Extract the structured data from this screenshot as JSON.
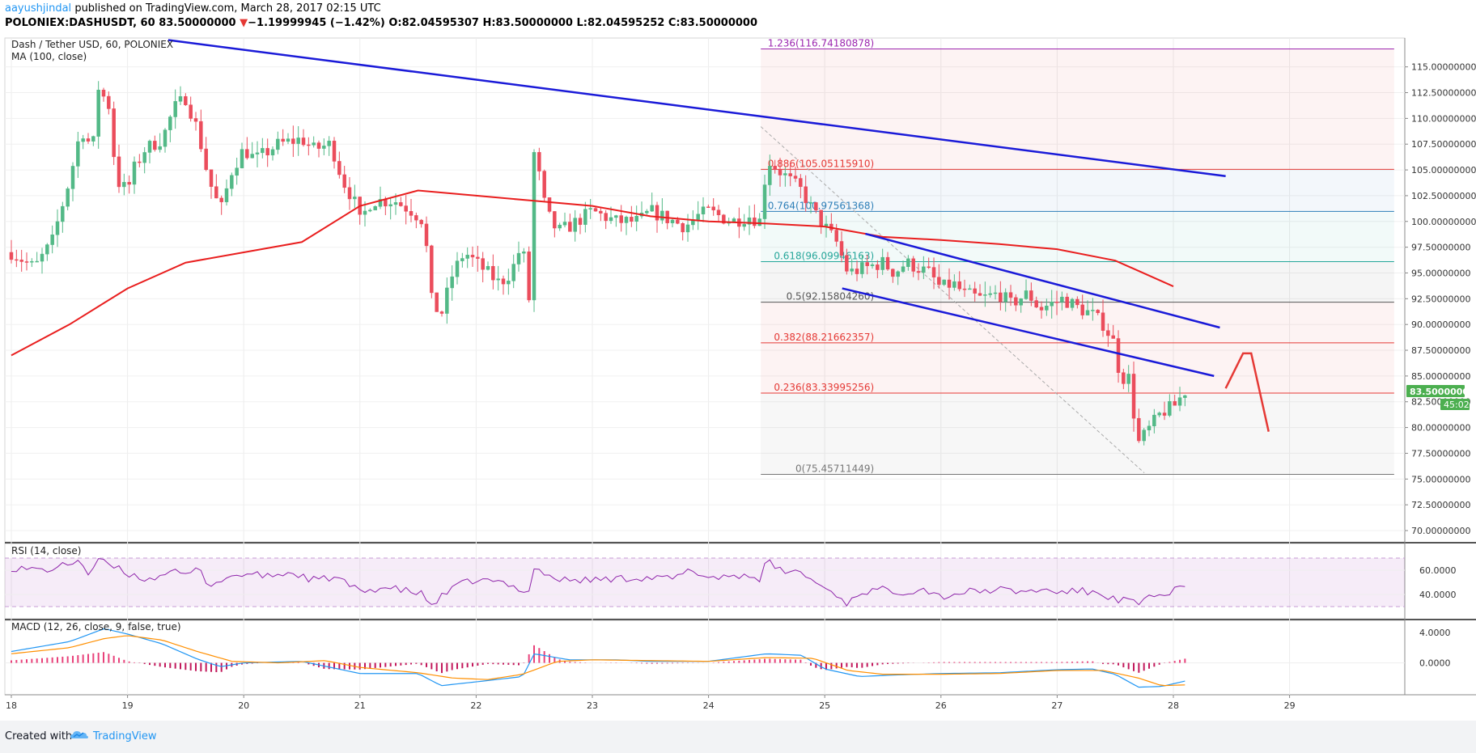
{
  "header": {
    "author": "aayushjindal",
    "published_text": "published on TradingView.com, March 28, 2017 02:15 UTC",
    "symbol": "POLONIEX:DASHUSDT, 60",
    "close": "83.50000000",
    "down_arrow": "▼",
    "change": "−1.19999945 (−1.42%)",
    "ohlc": "O:82.04595307 H:83.50000000 L:82.04595252 C:83.50000000"
  },
  "footer": {
    "created_with": "Created with",
    "brand": "TradingView",
    "logo_icon": "tradingview-cloud-icon"
  },
  "colors": {
    "up_candle": "#53b987",
    "down_candle": "#eb4d5c",
    "ma_line": "#e91e1e",
    "trend_line": "#1a1ad8",
    "fib_red": "#e53935",
    "fib_blue": "#2e7fb8",
    "fib_teal": "#26a69a",
    "fib_purple": "#9c27b0",
    "rsi_line": "#8e24aa",
    "macd_line": "#2196f3",
    "signal_line": "#ff8f00",
    "last_price_badge": "#4caf50"
  },
  "chart_data": [
    {
      "type": "candlestick",
      "title": "Dash / Tether USD, 60, POLONIEX",
      "indicator_label": "MA (100, close)",
      "x_ticks": [
        "18",
        "19",
        "20",
        "21",
        "22",
        "23",
        "24",
        "25",
        "26",
        "27",
        "28",
        "29"
      ],
      "x_range": [
        18,
        29.9
      ],
      "y_ticks": [
        "70.00000000",
        "72.50000000",
        "75.00000000",
        "77.50000000",
        "80.00000000",
        "82.50000000",
        "85.00000000",
        "87.50000000",
        "90.00000000",
        "92.50000000",
        "95.00000000",
        "97.50000000",
        "100.00000000",
        "102.50000000",
        "105.00000000",
        "107.50000000",
        "110.00000000",
        "112.50000000",
        "115.00000000"
      ],
      "ylim": [
        68.9,
        117.8
      ],
      "last_price": "83.50000000",
      "countdown": "45:02",
      "candle_anchors": [
        [
          18.0,
          97
        ],
        [
          18.2,
          95.5
        ],
        [
          18.35,
          98
        ],
        [
          18.5,
          104
        ],
        [
          18.6,
          109
        ],
        [
          18.7,
          107
        ],
        [
          18.75,
          113
        ],
        [
          18.85,
          111
        ],
        [
          18.9,
          104
        ],
        [
          19.0,
          103
        ],
        [
          19.05,
          105
        ],
        [
          19.15,
          107
        ],
        [
          19.3,
          108
        ],
        [
          19.4,
          111
        ],
        [
          19.5,
          112
        ],
        [
          19.6,
          109
        ],
        [
          19.7,
          104
        ],
        [
          19.8,
          101
        ],
        [
          19.9,
          105
        ],
        [
          20.0,
          107
        ],
        [
          20.1,
          106
        ],
        [
          20.3,
          107.5
        ],
        [
          20.5,
          108
        ],
        [
          20.6,
          107
        ],
        [
          20.75,
          107.5
        ],
        [
          20.85,
          104
        ],
        [
          20.95,
          102
        ],
        [
          21.0,
          100
        ],
        [
          21.1,
          102
        ],
        [
          21.3,
          102
        ],
        [
          21.45,
          101
        ],
        [
          21.55,
          100
        ],
        [
          21.62,
          92
        ],
        [
          21.7,
          91
        ],
        [
          21.8,
          95
        ],
        [
          21.9,
          97
        ],
        [
          22.0,
          96
        ],
        [
          22.1,
          95
        ],
        [
          22.2,
          94
        ],
        [
          22.3,
          95
        ],
        [
          22.4,
          98
        ],
        [
          22.45,
          91
        ],
        [
          22.5,
          107
        ],
        [
          22.55,
          104
        ],
        [
          22.6,
          101
        ],
        [
          22.7,
          99
        ],
        [
          22.8,
          99.5
        ],
        [
          23.0,
          101
        ],
        [
          23.2,
          100
        ],
        [
          23.4,
          100
        ],
        [
          23.5,
          101
        ],
        [
          23.7,
          100
        ],
        [
          23.8,
          99.5
        ],
        [
          23.9,
          100.5
        ],
        [
          24.0,
          101
        ],
        [
          24.2,
          100
        ],
        [
          24.35,
          100.5
        ],
        [
          24.45,
          100
        ],
        [
          24.5,
          106
        ],
        [
          24.6,
          105
        ],
        [
          24.7,
          104
        ],
        [
          24.8,
          103
        ],
        [
          24.9,
          101
        ],
        [
          25.0,
          99.5
        ],
        [
          25.1,
          98
        ],
        [
          25.2,
          95
        ],
        [
          25.35,
          95.5
        ],
        [
          25.5,
          96
        ],
        [
          25.6,
          95
        ],
        [
          25.7,
          96
        ],
        [
          25.8,
          95.5
        ],
        [
          25.9,
          95
        ],
        [
          26.0,
          93.5
        ],
        [
          26.1,
          94
        ],
        [
          26.2,
          93
        ],
        [
          26.35,
          92.5
        ],
        [
          26.5,
          93
        ],
        [
          26.6,
          92
        ],
        [
          26.75,
          93
        ],
        [
          26.85,
          91.5
        ],
        [
          26.95,
          92
        ],
        [
          27.05,
          92.5
        ],
        [
          27.2,
          91.5
        ],
        [
          27.3,
          91
        ],
        [
          27.4,
          90
        ],
        [
          27.5,
          88
        ],
        [
          27.55,
          84
        ],
        [
          27.6,
          86
        ],
        [
          27.65,
          82
        ],
        [
          27.7,
          78.5
        ],
        [
          27.8,
          80
        ],
        [
          27.9,
          81.5
        ],
        [
          28.0,
          82
        ],
        [
          28.1,
          83.5
        ]
      ],
      "ma_100": [
        [
          18.0,
          87
        ],
        [
          18.5,
          90
        ],
        [
          19.0,
          93.5
        ],
        [
          19.5,
          96
        ],
        [
          20.0,
          97
        ],
        [
          20.5,
          98
        ],
        [
          21.0,
          101.5
        ],
        [
          21.5,
          103
        ],
        [
          22.0,
          102.5
        ],
        [
          22.5,
          102
        ],
        [
          23.0,
          101.5
        ],
        [
          23.5,
          100.5
        ],
        [
          24.0,
          100
        ],
        [
          24.5,
          99.8
        ],
        [
          25.0,
          99.5
        ],
        [
          25.5,
          98.5
        ],
        [
          26.0,
          98.2
        ],
        [
          26.5,
          97.8
        ],
        [
          27.0,
          97.3
        ],
        [
          27.5,
          96.2
        ],
        [
          28.0,
          93.7
        ]
      ],
      "fibonacci_levels": [
        {
          "label": "1.236(116.74180878)",
          "value": 116.74180878,
          "color": "#9c27b0"
        },
        {
          "label": "0.886(105.05115910)",
          "value": 105.0511591,
          "color": "#e53935"
        },
        {
          "label": "0.764(100.97561368)",
          "value": 100.97561368,
          "color": "#2e7fb8"
        },
        {
          "label": "0.618(96.09946163)",
          "value": 96.09946163,
          "color": "#26a69a"
        },
        {
          "label": "0.5(92.15804260)",
          "value": 92.1580426,
          "color": "#555555"
        },
        {
          "label": "0.382(88.21662357)",
          "value": 88.21662357,
          "color": "#e53935"
        },
        {
          "label": "0.236(83.33995256)",
          "value": 83.33995256,
          "color": "#e53935"
        },
        {
          "label": "0(75.45711449)",
          "value": 75.45711449,
          "color": "#777777"
        }
      ],
      "fib_zone_x_range": [
        24.45,
        29.9
      ],
      "fib_diagonal": [
        [
          24.45,
          109.2
        ],
        [
          27.75,
          75.6
        ]
      ],
      "trend_lines": [
        [
          [
            19.35,
            117.6
          ],
          [
            28.45,
            104.4
          ]
        ],
        [
          [
            25.35,
            98.8
          ],
          [
            28.4,
            89.7
          ]
        ],
        [
          [
            25.15,
            93.5
          ],
          [
            28.35,
            85.0
          ]
        ]
      ],
      "forecast_path": [
        [
          28.45,
          83.8
        ],
        [
          28.6,
          87.2
        ],
        [
          28.67,
          87.2
        ],
        [
          28.82,
          79.6
        ]
      ]
    },
    {
      "type": "line",
      "title": "RSI (14, close)",
      "y_ticks": [
        "40.0000",
        "60.0000"
      ],
      "ylim": [
        20,
        82
      ],
      "band": [
        30,
        70
      ],
      "anchors": [
        [
          18.0,
          62
        ],
        [
          18.3,
          60
        ],
        [
          18.5,
          65
        ],
        [
          18.6,
          70
        ],
        [
          18.65,
          55
        ],
        [
          18.75,
          68
        ],
        [
          18.9,
          62
        ],
        [
          19.0,
          57
        ],
        [
          19.2,
          52
        ],
        [
          19.35,
          60
        ],
        [
          19.5,
          55
        ],
        [
          19.6,
          62
        ],
        [
          19.7,
          48
        ],
        [
          19.9,
          55
        ],
        [
          20.0,
          57
        ],
        [
          20.2,
          55
        ],
        [
          20.4,
          58
        ],
        [
          20.6,
          52
        ],
        [
          20.8,
          54
        ],
        [
          21.0,
          42
        ],
        [
          21.2,
          46
        ],
        [
          21.4,
          43
        ],
        [
          21.55,
          40
        ],
        [
          21.6,
          30
        ],
        [
          21.7,
          38
        ],
        [
          21.85,
          48
        ],
        [
          22.0,
          52
        ],
        [
          22.2,
          50
        ],
        [
          22.4,
          44
        ],
        [
          22.45,
          42
        ],
        [
          22.5,
          62
        ],
        [
          22.7,
          52
        ],
        [
          23.0,
          52
        ],
        [
          23.4,
          54
        ],
        [
          23.7,
          53
        ],
        [
          23.85,
          60
        ],
        [
          24.0,
          54
        ],
        [
          24.3,
          56
        ],
        [
          24.45,
          53
        ],
        [
          24.5,
          68
        ],
        [
          24.6,
          60
        ],
        [
          24.8,
          58
        ],
        [
          24.95,
          48
        ],
        [
          25.1,
          40
        ],
        [
          25.2,
          32
        ],
        [
          25.3,
          42
        ],
        [
          25.5,
          44
        ],
        [
          25.7,
          42
        ],
        [
          25.85,
          45
        ],
        [
          26.0,
          38
        ],
        [
          26.2,
          42
        ],
        [
          26.5,
          44
        ],
        [
          26.7,
          42
        ],
        [
          26.85,
          44
        ],
        [
          27.0,
          42
        ],
        [
          27.2,
          43
        ],
        [
          27.4,
          40
        ],
        [
          27.5,
          36
        ],
        [
          27.55,
          33
        ],
        [
          27.6,
          38
        ],
        [
          27.7,
          30
        ],
        [
          27.8,
          38
        ],
        [
          27.95,
          40
        ],
        [
          28.0,
          46
        ],
        [
          28.1,
          45
        ]
      ]
    },
    {
      "type": "line",
      "title": "MACD (12, 26, close, 9, false, true)",
      "y_ticks": [
        "4.0000",
        "0.0000"
      ],
      "ylim": [
        -4.2,
        5.6
      ],
      "series": [
        {
          "role": "macd",
          "anchors": [
            [
              18.0,
              1.5
            ],
            [
              18.5,
              2.8
            ],
            [
              18.8,
              4.5
            ],
            [
              19.0,
              3.8
            ],
            [
              19.3,
              2.5
            ],
            [
              19.6,
              0.5
            ],
            [
              19.8,
              -0.5
            ],
            [
              20.0,
              0
            ],
            [
              20.5,
              0.2
            ],
            [
              21.0,
              -1.4
            ],
            [
              21.5,
              -1.4
            ],
            [
              21.7,
              -3.0
            ],
            [
              22.0,
              -2.5
            ],
            [
              22.4,
              -1.8
            ],
            [
              22.5,
              1.2
            ],
            [
              22.8,
              0.4
            ],
            [
              23.2,
              0.4
            ],
            [
              23.5,
              0.2
            ],
            [
              24.0,
              0.2
            ],
            [
              24.5,
              1.2
            ],
            [
              24.8,
              1.0
            ],
            [
              25.0,
              -0.8
            ],
            [
              25.3,
              -1.8
            ],
            [
              25.6,
              -1.6
            ],
            [
              26.0,
              -1.4
            ],
            [
              26.5,
              -1.3
            ],
            [
              27.0,
              -0.9
            ],
            [
              27.3,
              -0.8
            ],
            [
              27.5,
              -1.5
            ],
            [
              27.7,
              -3.2
            ],
            [
              27.9,
              -3.1
            ],
            [
              28.1,
              -2.4
            ]
          ]
        },
        {
          "role": "signal",
          "anchors": [
            [
              18.0,
              1.2
            ],
            [
              18.5,
              2.0
            ],
            [
              18.8,
              3.2
            ],
            [
              19.0,
              3.6
            ],
            [
              19.3,
              3.0
            ],
            [
              19.6,
              1.5
            ],
            [
              19.9,
              0.2
            ],
            [
              20.3,
              0.0
            ],
            [
              20.7,
              0.3
            ],
            [
              21.0,
              -0.6
            ],
            [
              21.5,
              -1.3
            ],
            [
              21.8,
              -2.0
            ],
            [
              22.1,
              -2.2
            ],
            [
              22.4,
              -1.5
            ],
            [
              22.7,
              0.2
            ],
            [
              23.0,
              0.4
            ],
            [
              23.5,
              0.3
            ],
            [
              24.0,
              0.2
            ],
            [
              24.5,
              0.7
            ],
            [
              24.9,
              0.6
            ],
            [
              25.2,
              -1.0
            ],
            [
              25.5,
              -1.5
            ],
            [
              26.0,
              -1.5
            ],
            [
              26.5,
              -1.4
            ],
            [
              27.0,
              -1.0
            ],
            [
              27.4,
              -1.0
            ],
            [
              27.7,
              -2.0
            ],
            [
              27.9,
              -3.0
            ],
            [
              28.1,
              -2.9
            ]
          ]
        }
      ]
    }
  ]
}
